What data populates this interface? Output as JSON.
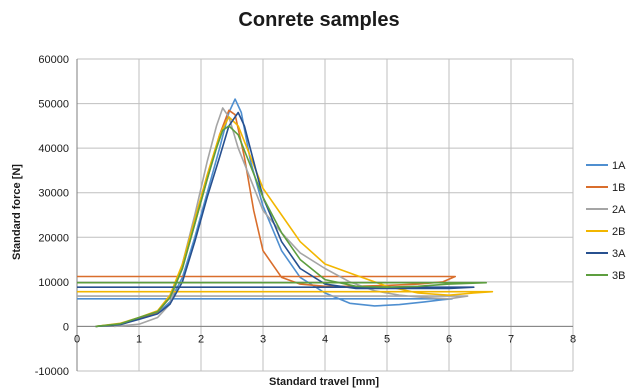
{
  "chart_data": {
    "type": "line",
    "title": "Conrete samples",
    "xlabel": "Standard travel [mm]",
    "ylabel": "Standard force [N]",
    "xlim": [
      0,
      8
    ],
    "ylim": [
      -10000,
      60000
    ],
    "x_ticks": [
      0,
      1,
      2,
      3,
      4,
      5,
      6,
      7,
      8
    ],
    "y_ticks": [
      -10000,
      0,
      10000,
      20000,
      30000,
      40000,
      50000,
      60000
    ],
    "grid": true,
    "legend_position": "right",
    "series": [
      {
        "name": "1A",
        "color": "#4f8fd0",
        "points": [
          [
            0.3,
            0
          ],
          [
            0.7,
            500
          ],
          [
            1.0,
            1800
          ],
          [
            1.3,
            3000
          ],
          [
            1.5,
            5500
          ],
          [
            1.7,
            11000
          ],
          [
            1.9,
            20000
          ],
          [
            2.1,
            30000
          ],
          [
            2.3,
            40000
          ],
          [
            2.45,
            48000
          ],
          [
            2.55,
            51000
          ],
          [
            2.65,
            48000
          ],
          [
            2.8,
            37000
          ],
          [
            3.0,
            27000
          ],
          [
            3.3,
            17000
          ],
          [
            3.6,
            11000
          ],
          [
            4.0,
            7500
          ],
          [
            4.4,
            5200
          ],
          [
            4.8,
            4600
          ],
          [
            5.2,
            4900
          ],
          [
            5.6,
            5500
          ],
          [
            5.9,
            6000
          ],
          [
            6.05,
            6200
          ],
          [
            3.0,
            6200
          ],
          [
            0,
            6200
          ]
        ]
      },
      {
        "name": "1B",
        "color": "#d96e2c",
        "points": [
          [
            0.3,
            0
          ],
          [
            0.7,
            600
          ],
          [
            1.0,
            1900
          ],
          [
            1.3,
            3200
          ],
          [
            1.5,
            6500
          ],
          [
            1.7,
            13000
          ],
          [
            1.9,
            23000
          ],
          [
            2.1,
            33000
          ],
          [
            2.3,
            43000
          ],
          [
            2.45,
            48500
          ],
          [
            2.55,
            47500
          ],
          [
            2.7,
            38000
          ],
          [
            2.85,
            26000
          ],
          [
            3.0,
            17000
          ],
          [
            3.3,
            11000
          ],
          [
            3.6,
            9500
          ],
          [
            4.0,
            9000
          ],
          [
            4.5,
            9000
          ],
          [
            5.0,
            9200
          ],
          [
            5.5,
            9500
          ],
          [
            5.9,
            10000
          ],
          [
            6.1,
            11200
          ],
          [
            3.0,
            11200
          ],
          [
            0,
            11200
          ]
        ]
      },
      {
        "name": "2A",
        "color": "#a5a5a5",
        "points": [
          [
            0.6,
            0
          ],
          [
            1.0,
            500
          ],
          [
            1.3,
            2000
          ],
          [
            1.5,
            5000
          ],
          [
            1.7,
            14000
          ],
          [
            1.9,
            25000
          ],
          [
            2.1,
            37000
          ],
          [
            2.25,
            45000
          ],
          [
            2.35,
            49000
          ],
          [
            2.45,
            47000
          ],
          [
            2.6,
            40000
          ],
          [
            2.8,
            33000
          ],
          [
            3.0,
            26000
          ],
          [
            3.3,
            21000
          ],
          [
            3.6,
            16500
          ],
          [
            4.0,
            13000
          ],
          [
            4.4,
            10000
          ],
          [
            4.8,
            8000
          ],
          [
            5.2,
            7000
          ],
          [
            5.6,
            6500
          ],
          [
            6.0,
            6200
          ],
          [
            6.3,
            6800
          ],
          [
            3.0,
            6800
          ],
          [
            0,
            6800
          ]
        ]
      },
      {
        "name": "2B",
        "color": "#f2b600",
        "points": [
          [
            0.3,
            0
          ],
          [
            0.7,
            700
          ],
          [
            1.0,
            2000
          ],
          [
            1.3,
            3500
          ],
          [
            1.5,
            7000
          ],
          [
            1.7,
            14000
          ],
          [
            1.9,
            24000
          ],
          [
            2.1,
            34000
          ],
          [
            2.3,
            43000
          ],
          [
            2.45,
            47000
          ],
          [
            2.6,
            45000
          ],
          [
            2.8,
            38000
          ],
          [
            3.0,
            31000
          ],
          [
            3.3,
            25000
          ],
          [
            3.6,
            19000
          ],
          [
            4.0,
            14000
          ],
          [
            4.5,
            11500
          ],
          [
            5.0,
            9000
          ],
          [
            5.5,
            7500
          ],
          [
            6.0,
            7000
          ],
          [
            6.4,
            7500
          ],
          [
            6.7,
            7800
          ],
          [
            3.0,
            7800
          ],
          [
            0,
            7800
          ]
        ]
      },
      {
        "name": "3A",
        "color": "#27508f",
        "points": [
          [
            0.3,
            0
          ],
          [
            0.7,
            400
          ],
          [
            1.0,
            1600
          ],
          [
            1.3,
            2800
          ],
          [
            1.5,
            5000
          ],
          [
            1.7,
            10000
          ],
          [
            1.9,
            19000
          ],
          [
            2.1,
            29000
          ],
          [
            2.3,
            38000
          ],
          [
            2.45,
            45000
          ],
          [
            2.6,
            48000
          ],
          [
            2.7,
            45000
          ],
          [
            2.85,
            37000
          ],
          [
            3.0,
            29000
          ],
          [
            3.3,
            19000
          ],
          [
            3.6,
            13000
          ],
          [
            4.0,
            9500
          ],
          [
            4.5,
            8500
          ],
          [
            5.0,
            8500
          ],
          [
            5.5,
            8500
          ],
          [
            6.0,
            8500
          ],
          [
            6.4,
            8800
          ],
          [
            3.0,
            8800
          ],
          [
            0,
            8800
          ]
        ]
      },
      {
        "name": "3B",
        "color": "#5d9e3f",
        "points": [
          [
            0.3,
            0
          ],
          [
            0.7,
            600
          ],
          [
            1.0,
            2000
          ],
          [
            1.3,
            3300
          ],
          [
            1.5,
            6500
          ],
          [
            1.7,
            13000
          ],
          [
            1.9,
            23000
          ],
          [
            2.1,
            33000
          ],
          [
            2.25,
            40000
          ],
          [
            2.35,
            44000
          ],
          [
            2.45,
            45000
          ],
          [
            2.6,
            43000
          ],
          [
            2.8,
            36000
          ],
          [
            3.0,
            29000
          ],
          [
            3.3,
            21000
          ],
          [
            3.6,
            15000
          ],
          [
            4.0,
            10500
          ],
          [
            4.5,
            9000
          ],
          [
            5.0,
            8800
          ],
          [
            5.5,
            9000
          ],
          [
            6.0,
            9500
          ],
          [
            6.6,
            9800
          ],
          [
            3.0,
            9800
          ],
          [
            0,
            9800
          ]
        ]
      }
    ]
  }
}
